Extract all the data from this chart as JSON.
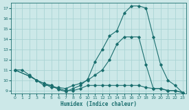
{
  "xlabel": "Humidex (Indice chaleur)",
  "bg_color": "#cce8e8",
  "grid_color": "#aad4d4",
  "line_color": "#1a6e6e",
  "xlim": [
    -0.5,
    23.5
  ],
  "ylim": [
    8.7,
    17.5
  ],
  "yticks": [
    9,
    10,
    11,
    12,
    13,
    14,
    15,
    16,
    17
  ],
  "xticks": [
    0,
    1,
    2,
    3,
    4,
    5,
    6,
    7,
    8,
    9,
    10,
    11,
    12,
    13,
    14,
    15,
    16,
    17,
    18,
    19,
    20,
    21,
    22,
    23
  ],
  "line1_x": [
    0,
    1,
    2,
    3,
    4,
    5,
    6,
    7,
    8,
    9,
    10,
    11,
    12,
    13,
    14,
    15,
    16,
    17,
    18,
    19,
    20,
    21,
    22,
    23
  ],
  "line1_y": [
    11,
    11,
    10.5,
    10,
    9.7,
    9.5,
    9.1,
    8.9,
    9.2,
    9.5,
    10.1,
    11.8,
    13.0,
    14.3,
    14.8,
    16.5,
    17.2,
    17.2,
    17.0,
    14.2,
    11.5,
    10.0,
    9.5,
    8.8
  ],
  "line2_x": [
    0,
    2,
    3,
    4,
    5,
    6,
    7,
    8,
    9,
    10,
    11,
    12,
    13,
    14,
    15,
    16,
    17,
    18,
    19,
    20,
    21,
    22,
    23
  ],
  "line2_y": [
    11,
    10.4,
    10.0,
    9.7,
    9.3,
    9.3,
    9.2,
    9.5,
    9.7,
    10.0,
    10.5,
    11.0,
    12.0,
    13.5,
    14.2,
    14.2,
    14.2,
    11.5,
    9.2,
    9.2,
    9.0,
    9.0,
    8.8
  ],
  "line3_x": [
    0,
    2,
    3,
    4,
    5,
    6,
    7,
    8,
    9,
    10,
    11,
    12,
    13,
    14,
    15,
    16,
    17,
    18,
    19,
    20,
    21,
    22,
    23
  ],
  "line3_y": [
    11,
    10.4,
    10.0,
    9.5,
    9.5,
    9.2,
    9.0,
    9.0,
    9.2,
    9.5,
    9.5,
    9.5,
    9.5,
    9.5,
    9.5,
    9.5,
    9.5,
    9.3,
    9.2,
    9.2,
    9.0,
    9.0,
    8.8
  ]
}
